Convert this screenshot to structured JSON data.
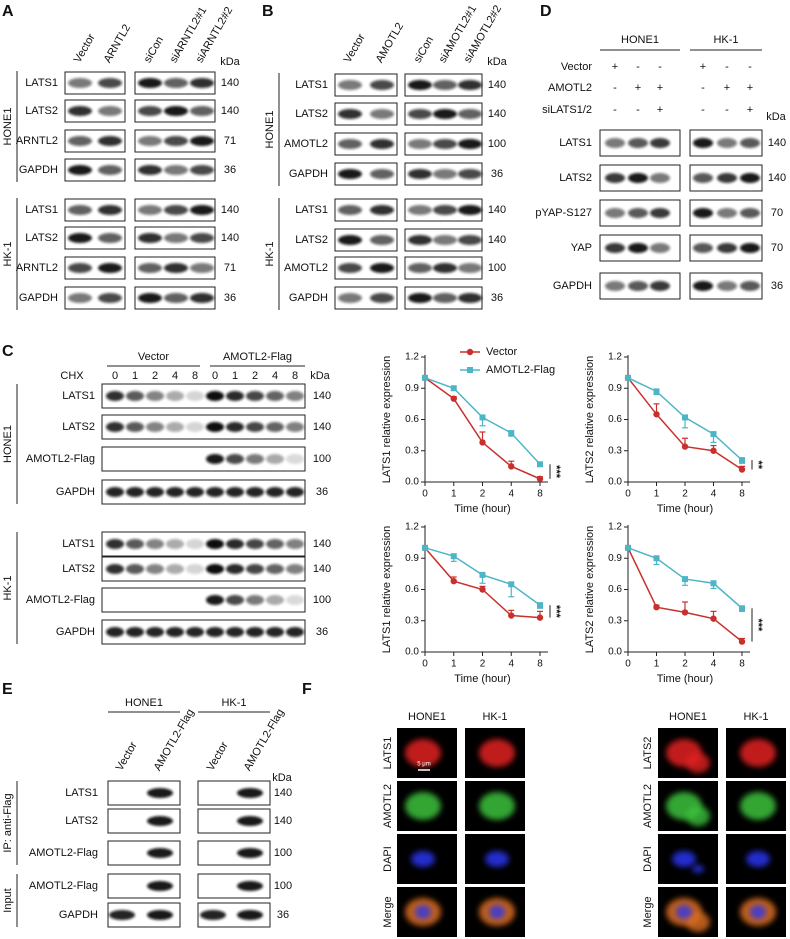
{
  "panels": {
    "A": {
      "label": "A",
      "columns": [
        "Vector",
        "ARNTL2",
        "siCon",
        "siARNTL2#1",
        "siARNTL2#2"
      ],
      "unit": "kDa",
      "groups": [
        {
          "name": "HONE1",
          "rows": [
            {
              "protein": "LATS1",
              "kda": 140
            },
            {
              "protein": "LATS2",
              "kda": 140
            },
            {
              "protein": "ARNTL2",
              "kda": 71
            },
            {
              "protein": "GAPDH",
              "kda": 36
            }
          ]
        },
        {
          "name": "HK-1",
          "rows": [
            {
              "protein": "LATS1",
              "kda": 140
            },
            {
              "protein": "LATS2",
              "kda": 140
            },
            {
              "protein": "ARNTL2",
              "kda": 71
            },
            {
              "protein": "GAPDH",
              "kda": 36
            }
          ]
        }
      ]
    },
    "B": {
      "label": "B",
      "columns": [
        "Vector",
        "AMOTL2",
        "siCon",
        "siAMOTL2#1",
        "siAMOTL2#2"
      ],
      "unit": "kDa",
      "groups": [
        {
          "name": "HONE1",
          "rows": [
            {
              "protein": "LATS1",
              "kda": 140
            },
            {
              "protein": "LATS2",
              "kda": 140
            },
            {
              "protein": "AMOTL2",
              "kda": 100
            },
            {
              "protein": "GAPDH",
              "kda": 36
            }
          ]
        },
        {
          "name": "HK-1",
          "rows": [
            {
              "protein": "LATS1",
              "kda": 140
            },
            {
              "protein": "LATS2",
              "kda": 140
            },
            {
              "protein": "AMOTL2",
              "kda": 100
            },
            {
              "protein": "GAPDH",
              "kda": 36
            }
          ]
        }
      ]
    },
    "C": {
      "label": "C",
      "treatment": "CHX",
      "unit": "kDa",
      "lane_groups": [
        {
          "name": "Vector",
          "doses": [
            "0",
            "1",
            "2",
            "4",
            "8"
          ]
        },
        {
          "name": "AMOTL2-Flag",
          "doses": [
            "0",
            "1",
            "2",
            "4",
            "8"
          ]
        }
      ],
      "groups": [
        {
          "name": "HONE1",
          "rows": [
            {
              "protein": "LATS1",
              "kda": 140
            },
            {
              "protein": "LATS2",
              "kda": 140
            },
            {
              "protein": "AMOTL2-Flag",
              "kda": 100
            },
            {
              "protein": "GAPDH",
              "kda": 36
            }
          ]
        },
        {
          "name": "HK-1",
          "rows": [
            {
              "protein": "LATS1",
              "kda": 140
            },
            {
              "protein": "LATS2",
              "kda": 140
            },
            {
              "protein": "AMOTL2-Flag",
              "kda": 100
            },
            {
              "protein": "GAPDH",
              "kda": 36
            }
          ]
        }
      ]
    },
    "D": {
      "label": "D",
      "cell_lines": [
        "HONE1",
        "HK-1"
      ],
      "unit": "kDa",
      "treatments": [
        {
          "name": "Vector",
          "signs": [
            "+",
            "-",
            "-",
            "+",
            "-",
            "-"
          ]
        },
        {
          "name": "AMOTL2",
          "signs": [
            "-",
            "+",
            "+",
            "-",
            "+",
            "+"
          ]
        },
        {
          "name": "siLATS1/2",
          "signs": [
            "-",
            "-",
            "+",
            "-",
            "-",
            "+"
          ]
        }
      ],
      "rows": [
        {
          "protein": "LATS1",
          "kda": 140
        },
        {
          "protein": "LATS2",
          "kda": 140
        },
        {
          "protein": "pYAP-S127",
          "kda": 70
        },
        {
          "protein": "YAP",
          "kda": 70
        },
        {
          "protein": "GAPDH",
          "kda": 36
        }
      ]
    },
    "E": {
      "label": "E",
      "unit": "kDa",
      "lane_groups": [
        {
          "name": "HONE1",
          "columns": [
            "Vector",
            "AMOTL2-Flag"
          ]
        },
        {
          "name": "HK-1",
          "columns": [
            "Vector",
            "AMOTL2-Flag"
          ]
        }
      ],
      "sections": [
        {
          "name": "IP: anti-Flag",
          "rows": [
            {
              "protein": "LATS1",
              "kda": 140
            },
            {
              "protein": "LATS2",
              "kda": 140
            },
            {
              "protein": "AMOTL2-Flag",
              "kda": 100
            }
          ]
        },
        {
          "name": "Input",
          "rows": [
            {
              "protein": "AMOTL2-Flag",
              "kda": 100
            },
            {
              "protein": "GAPDH",
              "kda": 36
            }
          ]
        }
      ]
    },
    "F": {
      "label": "F",
      "scale_bar": "5 μm",
      "blocks": [
        {
          "columns": [
            "HONE1",
            "HK-1"
          ],
          "rows": [
            "LATS1",
            "AMOTL2",
            "DAPI",
            "Merge"
          ]
        },
        {
          "columns": [
            "HONE1",
            "HK-1"
          ],
          "rows": [
            "LATS2",
            "AMOTL2",
            "DAPI",
            "Merge"
          ]
        }
      ]
    }
  },
  "chart_data": [
    {
      "type": "line",
      "x_label": "Time (hour)",
      "y_label": "LATS1 relative expression",
      "categories": [
        "0",
        "1",
        "2",
        "4",
        "8"
      ],
      "ylim": [
        0,
        1.2
      ],
      "yticks": [
        {
          "value": 0,
          "label": "0.0"
        },
        0.3,
        0.6,
        0.9,
        1.2
      ],
      "legend": "top",
      "significance": "***",
      "series": [
        {
          "name": "Vector",
          "color": "#c9302c",
          "values": [
            1.0,
            0.8,
            0.38,
            0.15,
            0.03
          ],
          "errors": [
            0,
            0.02,
            0.1,
            0.05,
            0.02
          ]
        },
        {
          "name": "AMOTL2-Flag",
          "color": "#4db5c6",
          "values": [
            1.0,
            0.9,
            0.62,
            0.47,
            0.17
          ],
          "errors": [
            0,
            0.02,
            0.08,
            0.03,
            0.02
          ]
        }
      ]
    },
    {
      "type": "line",
      "x_label": "Time (hour)",
      "y_label": "LATS2 relative expression",
      "categories": [
        "0",
        "1",
        "2",
        "4",
        "8"
      ],
      "ylim": [
        0,
        1.2
      ],
      "yticks": [
        {
          "value": 0,
          "label": "0.0"
        },
        0.3,
        0.6,
        0.9,
        1.2
      ],
      "significance": "**",
      "series": [
        {
          "name": "Vector",
          "color": "#c9302c",
          "values": [
            1.0,
            0.65,
            0.34,
            0.3,
            0.12
          ],
          "errors": [
            0,
            0.1,
            0.08,
            0.05,
            0.03
          ]
        },
        {
          "name": "AMOTL2-Flag",
          "color": "#4db5c6",
          "values": [
            1.0,
            0.87,
            0.62,
            0.46,
            0.21
          ],
          "errors": [
            0,
            0.03,
            0.1,
            0.08,
            0.03
          ]
        }
      ]
    },
    {
      "type": "line",
      "x_label": "Time (hour)",
      "y_label": "LATS1 relative expression",
      "categories": [
        "0",
        "1",
        "2",
        "4",
        "8"
      ],
      "ylim": [
        0,
        1.2
      ],
      "yticks": [
        {
          "value": 0,
          "label": "0.0"
        },
        0.3,
        0.6,
        0.9,
        1.2
      ],
      "significance": "***",
      "series": [
        {
          "name": "Vector",
          "color": "#c9302c",
          "values": [
            1.0,
            0.68,
            0.6,
            0.35,
            0.33
          ],
          "errors": [
            0,
            0.04,
            0.03,
            0.05,
            0.06
          ]
        },
        {
          "name": "AMOTL2-Flag",
          "color": "#4db5c6",
          "values": [
            1.0,
            0.92,
            0.74,
            0.65,
            0.45
          ],
          "errors": [
            0,
            0.05,
            0.08,
            0.12,
            0.03
          ]
        }
      ]
    },
    {
      "type": "line",
      "x_label": "Time (hour)",
      "y_label": "LATS2 relative expression",
      "categories": [
        "0",
        "1",
        "2",
        "4",
        "8"
      ],
      "ylim": [
        0,
        1.2
      ],
      "yticks": [
        {
          "value": 0,
          "label": "0.0"
        },
        0.3,
        0.6,
        0.9,
        1.2
      ],
      "significance": "***",
      "series": [
        {
          "name": "Vector",
          "color": "#c9302c",
          "values": [
            1.0,
            0.43,
            0.38,
            0.32,
            0.1
          ],
          "errors": [
            0,
            0.02,
            0.1,
            0.07,
            0.03
          ]
        },
        {
          "name": "AMOTL2-Flag",
          "color": "#4db5c6",
          "values": [
            1.0,
            0.9,
            0.7,
            0.66,
            0.42
          ],
          "errors": [
            0,
            0.06,
            0.06,
            0.05,
            0.03
          ]
        }
      ]
    }
  ]
}
